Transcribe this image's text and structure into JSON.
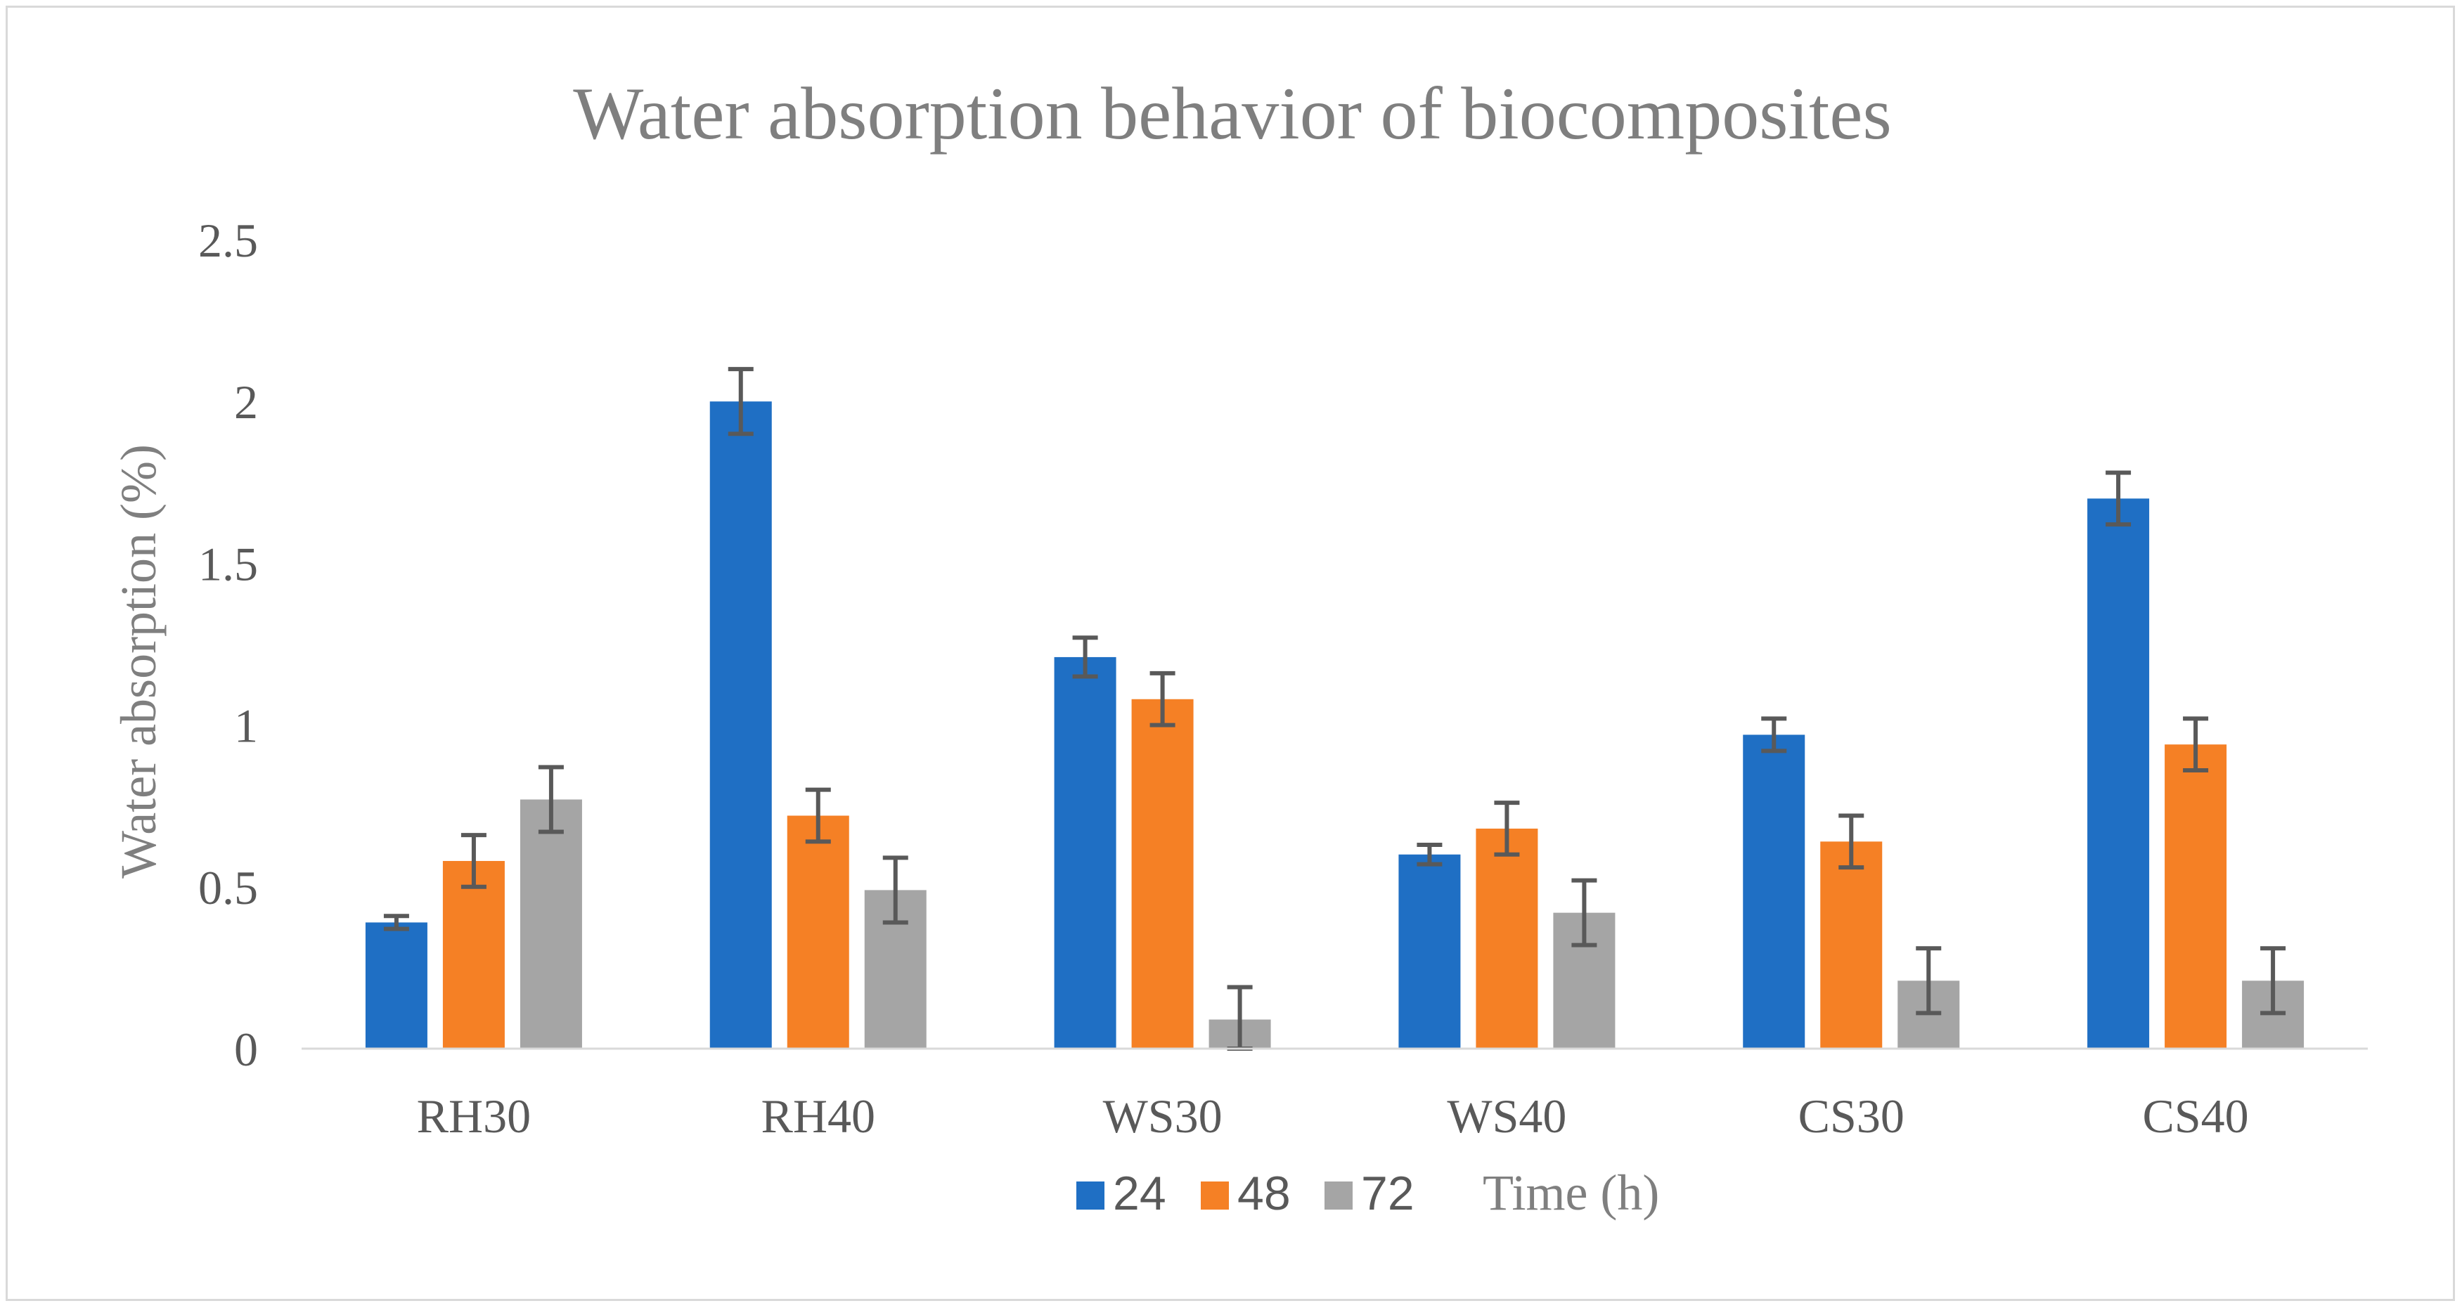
{
  "chart_data": {
    "type": "bar",
    "title": "Water absorption behavior of biocomposites",
    "xlabel": "",
    "ylabel": "Water absorption (%)",
    "ylim": [
      0,
      2.5
    ],
    "yticks": [
      0,
      0.5,
      1,
      1.5,
      2,
      2.5
    ],
    "ytick_labels": [
      "0",
      "0.5",
      "1",
      "1.5",
      "2",
      "2.5"
    ],
    "grid": false,
    "categories": [
      "RH30",
      "RH40",
      "WS30",
      "WS40",
      "CS30",
      "CS40"
    ],
    "series": [
      {
        "name": "24",
        "color": "#1f6fc4",
        "values": [
          0.39,
          2.0,
          1.21,
          0.6,
          0.97,
          1.7
        ],
        "errors": [
          0.02,
          0.1,
          0.06,
          0.03,
          0.05,
          0.08
        ]
      },
      {
        "name": "48",
        "color": "#f58025",
        "values": [
          0.58,
          0.72,
          1.08,
          0.68,
          0.64,
          0.94
        ],
        "errors": [
          0.08,
          0.08,
          0.08,
          0.08,
          0.08,
          0.08
        ]
      },
      {
        "name": "72",
        "color": "#a5a5a5",
        "values": [
          0.77,
          0.49,
          0.09,
          0.42,
          0.21,
          0.21
        ],
        "errors": [
          0.1,
          0.1,
          0.1,
          0.1,
          0.1,
          0.1
        ]
      }
    ],
    "legend": {
      "position": "bottom",
      "title": "Time (h)"
    }
  }
}
